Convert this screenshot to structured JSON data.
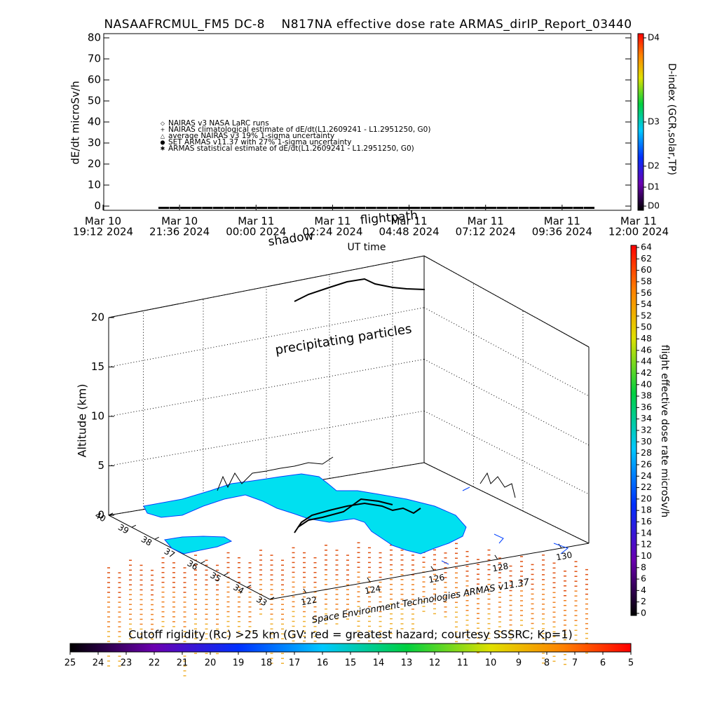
{
  "chart_data": [
    {
      "type": "line",
      "title": "NASAAFRCMUL_FM5 DC-8    N817NA effective dose rate ARMAS_dirIP_Report_03440",
      "ylabel": "dE/dt microSv/h",
      "ylim": [
        -2,
        82
      ],
      "yticks": [
        0,
        10,
        20,
        30,
        40,
        50,
        60,
        70,
        80
      ],
      "x_labels": [
        [
          "Mar 10",
          "19:12 2024"
        ],
        [
          "Mar 10",
          "21:36 2024"
        ],
        [
          "Mar 11",
          "00:00 2024"
        ],
        [
          "Mar 11",
          "02:24 2024"
        ],
        [
          "Mar 11",
          "04:48 2024"
        ],
        [
          "Mar 11",
          "07:12 2024"
        ],
        [
          "Mar 11",
          "09:36 2024"
        ],
        [
          "Mar 11",
          "12:00 2024"
        ]
      ],
      "series": [
        {
          "name": "NAIRAS v3 NASA LaRC runs",
          "symbol": "◇",
          "values": []
        },
        {
          "name": "NAIRAS climatological estimate of dE/dt(L1.2609241 - L1.2951250, G0)",
          "symbol": "+",
          "values": []
        },
        {
          "name": "average NAIRAS v3 19% 1-sigma uncertainty",
          "symbol": "△",
          "values": []
        },
        {
          "name": "SET ARMAS v11.37 with 27% 1-sigma uncertainty",
          "symbol": "●",
          "color": "#2040ff",
          "values": []
        },
        {
          "name": "ARMAS statistical estimate of dE/dt(L1.2609241 - L1.2951250, G0)",
          "symbol": "✱",
          "color": "#000000",
          "values": [
            0,
            0,
            0,
            0,
            0,
            0,
            0,
            0,
            0,
            0,
            0,
            0,
            0,
            0,
            0,
            0,
            0,
            0,
            0,
            0,
            0,
            0,
            0,
            0,
            0,
            0,
            0,
            0,
            0,
            0,
            0,
            0,
            0,
            0,
            0,
            0,
            0,
            0,
            0,
            0
          ]
        }
      ],
      "colorbar": {
        "label": "D-index (GCR,solar,TP)",
        "ticks": [
          {
            "value": 0,
            "label": "D0"
          },
          {
            "value": 9,
            "label": "D1"
          },
          {
            "value": 19,
            "label": "D2"
          },
          {
            "value": 40,
            "label": "D3"
          },
          {
            "value": 80,
            "label": "D4"
          }
        ]
      }
    },
    {
      "type": "scatter3d",
      "annotations": [
        "flightpath",
        "shadow",
        "UT time",
        "precipitating particles",
        "Space Environment Technologies ARMAS v11.37"
      ],
      "zlabel": "Altitude (km)",
      "zlim": [
        0,
        20
      ],
      "zticks": [
        0,
        5,
        10,
        15,
        20
      ],
      "lat_ticks": [
        40,
        39,
        38,
        37,
        36,
        35,
        34,
        33
      ],
      "lon_ticks": [
        122,
        124,
        126,
        128,
        130
      ],
      "colorbar": {
        "label": "flight effective dose rate microSv/h",
        "lim": [
          0,
          64
        ],
        "ticks": [
          0,
          2,
          4,
          6,
          8,
          10,
          12,
          14,
          16,
          18,
          20,
          22,
          24,
          26,
          28,
          30,
          32,
          34,
          36,
          38,
          40,
          42,
          44,
          46,
          48,
          50,
          52,
          54,
          56,
          58,
          60,
          62,
          64
        ]
      },
      "cutoff_bar": {
        "title": "Cutoff rigidity (Rc) >25 km (GV: red = greatest hazard; courtesy SSSRC; Kp=1)",
        "lim": [
          25,
          5
        ],
        "ticks": [
          25,
          24,
          23,
          22,
          21,
          20,
          19,
          18,
          17,
          16,
          15,
          14,
          13,
          12,
          11,
          10,
          9,
          8,
          7,
          6,
          5
        ]
      }
    }
  ]
}
